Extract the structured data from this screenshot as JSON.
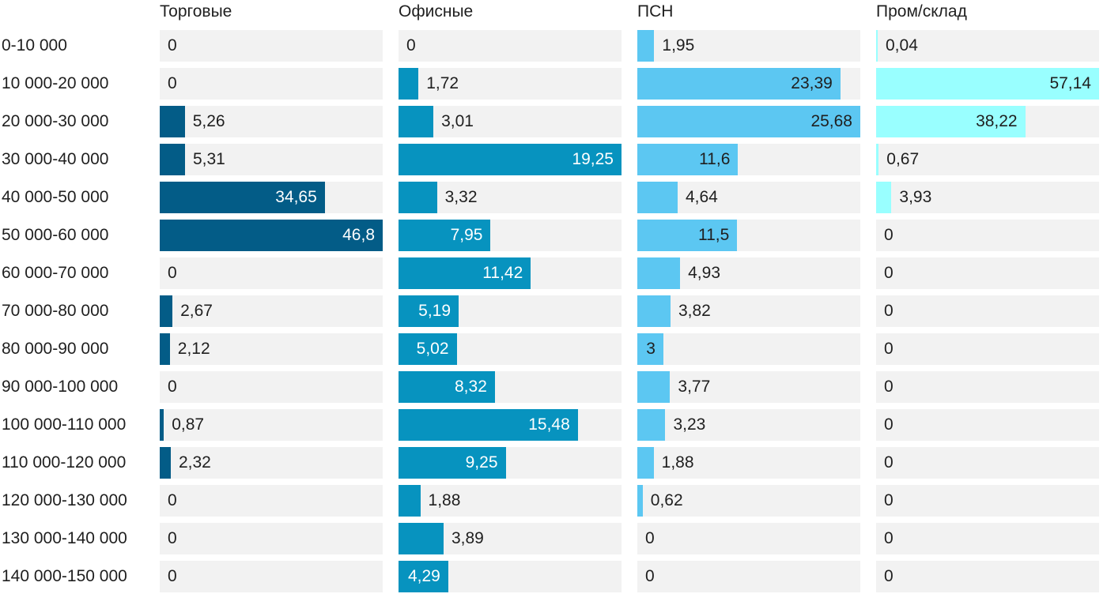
{
  "chart_data": {
    "type": "bar",
    "orientation": "horizontal",
    "layout": "small-multiples",
    "categories": [
      "0-10 000",
      "10 000-20 000",
      "20 000-30 000",
      "30 000-40 000",
      "40 000-50 000",
      "50 000-60 000",
      "60 000-70 000",
      "70 000-80 000",
      "80 000-90 000",
      "90 000-100 000",
      "100 000-110 000",
      "110 000-120 000",
      "120 000-130 000",
      "130 000-140 000",
      "140 000-150 000"
    ],
    "series": [
      {
        "name": "Торговые",
        "color": "#035c87",
        "labels": [
          "0",
          "0",
          "5,26",
          "5,31",
          "34,65",
          "46,8",
          "0",
          "2,67",
          "2,12",
          "0",
          "0,87",
          "2,32",
          "0",
          "0",
          "0"
        ],
        "values": [
          0,
          0,
          5.26,
          5.31,
          34.65,
          46.8,
          0,
          2.67,
          2.12,
          0,
          0.87,
          2.32,
          0,
          0,
          0
        ],
        "max": 46.8
      },
      {
        "name": "Офисные",
        "color": "#0793bf",
        "labels": [
          "0",
          "1,72",
          "3,01",
          "19,25",
          "3,32",
          "7,95",
          "11,42",
          "5,19",
          "5,02",
          "8,32",
          "15,48",
          "9,25",
          "1,88",
          "3,89",
          "4,29"
        ],
        "values": [
          0,
          1.72,
          3.01,
          19.25,
          3.32,
          7.95,
          11.42,
          5.19,
          5.02,
          8.32,
          15.48,
          9.25,
          1.88,
          3.89,
          4.29
        ],
        "max": 19.25
      },
      {
        "name": "ПСН",
        "color": "#5cc7f2",
        "labels": [
          "1,95",
          "23,39",
          "25,68",
          "11,6",
          "4,64",
          "11,5",
          "4,93",
          "3,82",
          "3",
          "3,77",
          "3,23",
          "1,88",
          "0,62",
          "0",
          "0"
        ],
        "values": [
          1.95,
          23.39,
          25.68,
          11.6,
          4.64,
          11.5,
          4.93,
          3.82,
          3,
          3.77,
          3.23,
          1.88,
          0.62,
          0,
          0
        ],
        "max": 25.68
      },
      {
        "name": "Пром/склад",
        "color": "#99ffff",
        "labels": [
          "0,04",
          "57,14",
          "38,22",
          "0,67",
          "3,93",
          "0",
          "0",
          "0",
          "0",
          "0",
          "0",
          "0",
          "0",
          "0",
          "0"
        ],
        "values": [
          0.04,
          57.14,
          38.22,
          0.67,
          3.93,
          0,
          0,
          0,
          0,
          0,
          0,
          0,
          0,
          0,
          0
        ],
        "max": 57.14
      }
    ],
    "inside_label_colors": {
      "Торговые": "#ffffff",
      "Офисные": "#ffffff",
      "ПСН": "#1f1f1f",
      "Пром/склад": "#1f1f1f"
    },
    "cell_background": "#f2f2f2",
    "grid": false,
    "legend": "none"
  }
}
